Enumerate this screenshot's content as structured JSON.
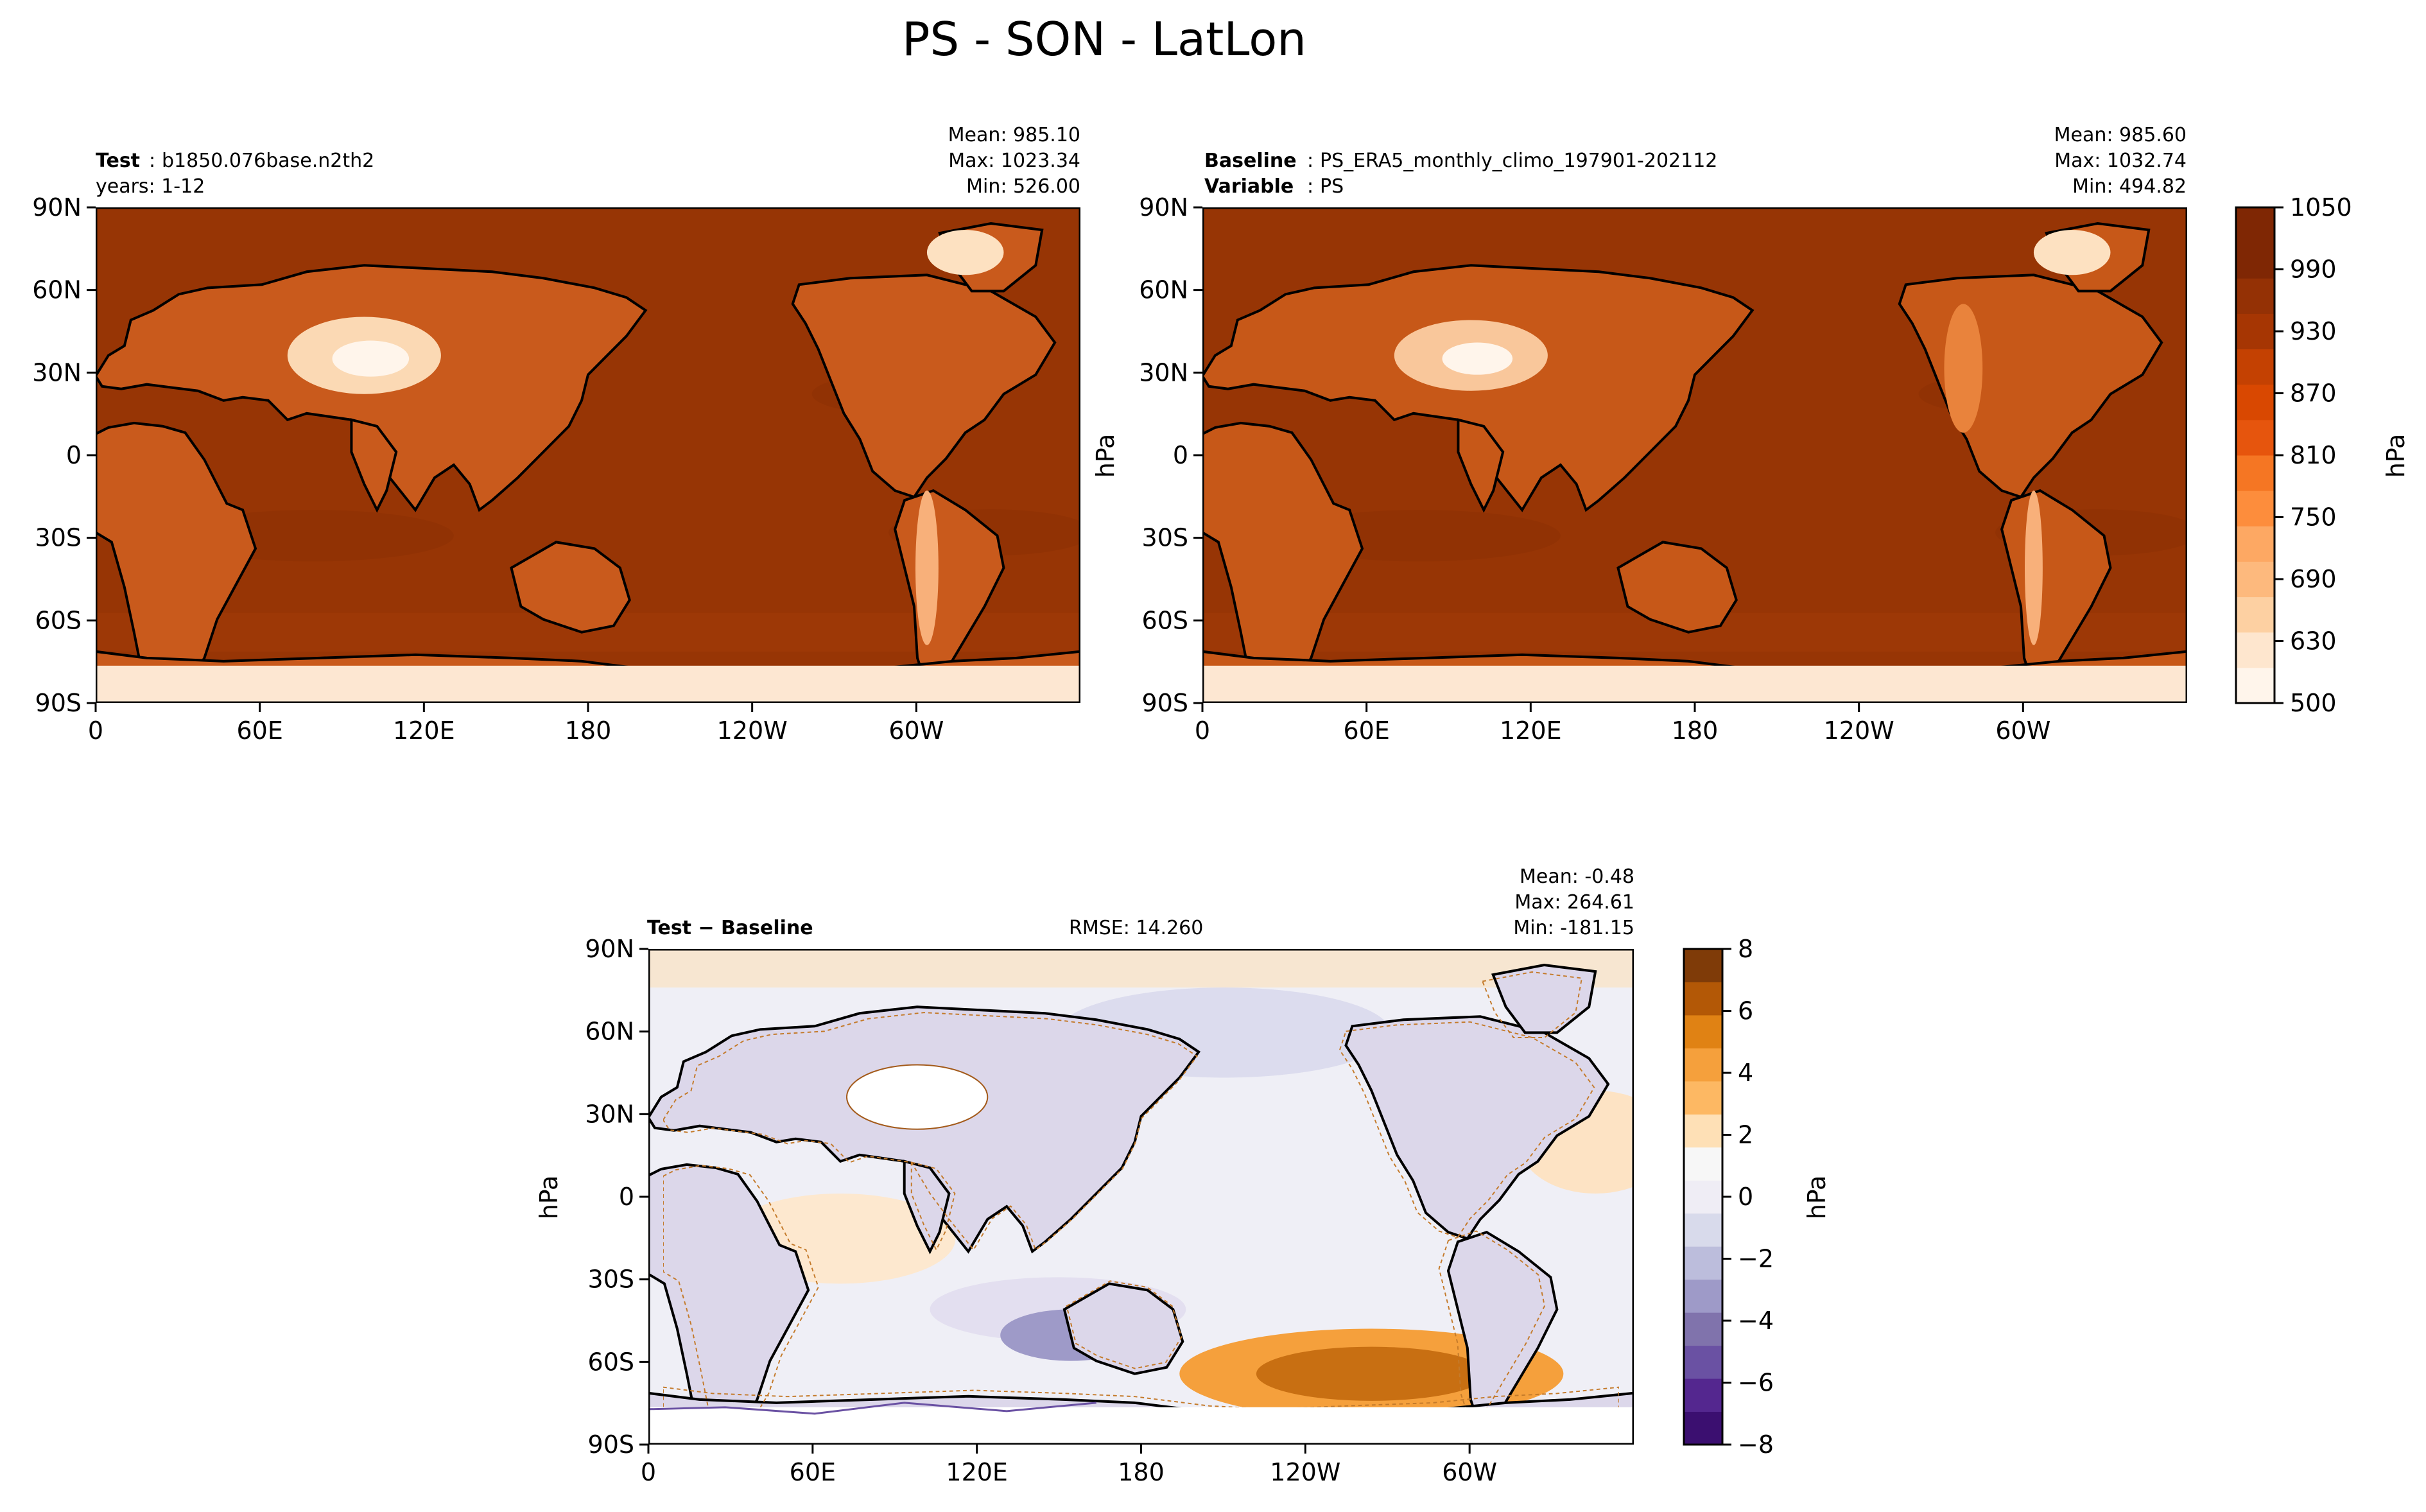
{
  "figure": {
    "title": "PS - SON - LatLon"
  },
  "axes": {
    "lat_ticks": [
      "90N",
      "60N",
      "30N",
      "0",
      "30S",
      "60S",
      "90S"
    ],
    "lon_ticks": [
      "0",
      "60E",
      "120E",
      "180",
      "120W",
      "60W"
    ]
  },
  "panels": {
    "test": {
      "label_key": "Test",
      "label_value": "b1850.076base.n2th2",
      "line2": "years: 1-12",
      "mean": "Mean: 985.10",
      "max": "Max: 1023.34",
      "min": "Min: 526.00"
    },
    "baseline": {
      "label_key": "Baseline",
      "label_value": "PS_ERA5_monthly_climo_197901-202112",
      "var_key": "Variable",
      "var_value": "PS",
      "mean": "Mean: 985.60",
      "max": "Max: 1032.74",
      "min": "Min: 494.82",
      "ylabel": "hPa"
    },
    "diff": {
      "label": "Test − Baseline",
      "rmse": "RMSE: 14.260",
      "mean": "Mean: -0.48",
      "max": "Max: 264.61",
      "min": "Min: -181.15",
      "ylabel": "hPa"
    }
  },
  "colorbars": {
    "top": {
      "label": "hPa",
      "ticks": [
        "1050",
        "990",
        "930",
        "870",
        "810",
        "750",
        "690",
        "630",
        "500"
      ],
      "colors": [
        "#fff5eb",
        "#fee6ce",
        "#fdd0a2",
        "#fdb97d",
        "#fda863",
        "#fd8d3c",
        "#f57623",
        "#e6550d",
        "#d94801",
        "#c44102",
        "#a63603",
        "#943105",
        "#7f2704",
        "#7f2704"
      ]
    },
    "bottom": {
      "label": "hPa",
      "ticks": [
        "8",
        "6",
        "4",
        "2",
        "0",
        "−2",
        "−4",
        "−6",
        "−8"
      ],
      "colors": [
        "#3b0f70",
        "#54278f",
        "#6a51a3",
        "#8073ac",
        "#9e9ac8",
        "#bcbddc",
        "#d8daeb",
        "#efedf5",
        "#f7f7f7",
        "#fee0b6",
        "#fdb863",
        "#f5a03c",
        "#e08214",
        "#b35806",
        "#7f3b08"
      ]
    }
  },
  "map_colors": {
    "ocean_test": "#973505",
    "ocean_base": "#973505",
    "land_mid": "#d96a2a",
    "land_high": "#fbd9b4",
    "ice": "#fff1e3",
    "diff_ocean": "#eeeef6",
    "diff_land": "#dcd7ea",
    "diff_brown": "#c47a2a",
    "diff_purple": "#6a51a3"
  }
}
